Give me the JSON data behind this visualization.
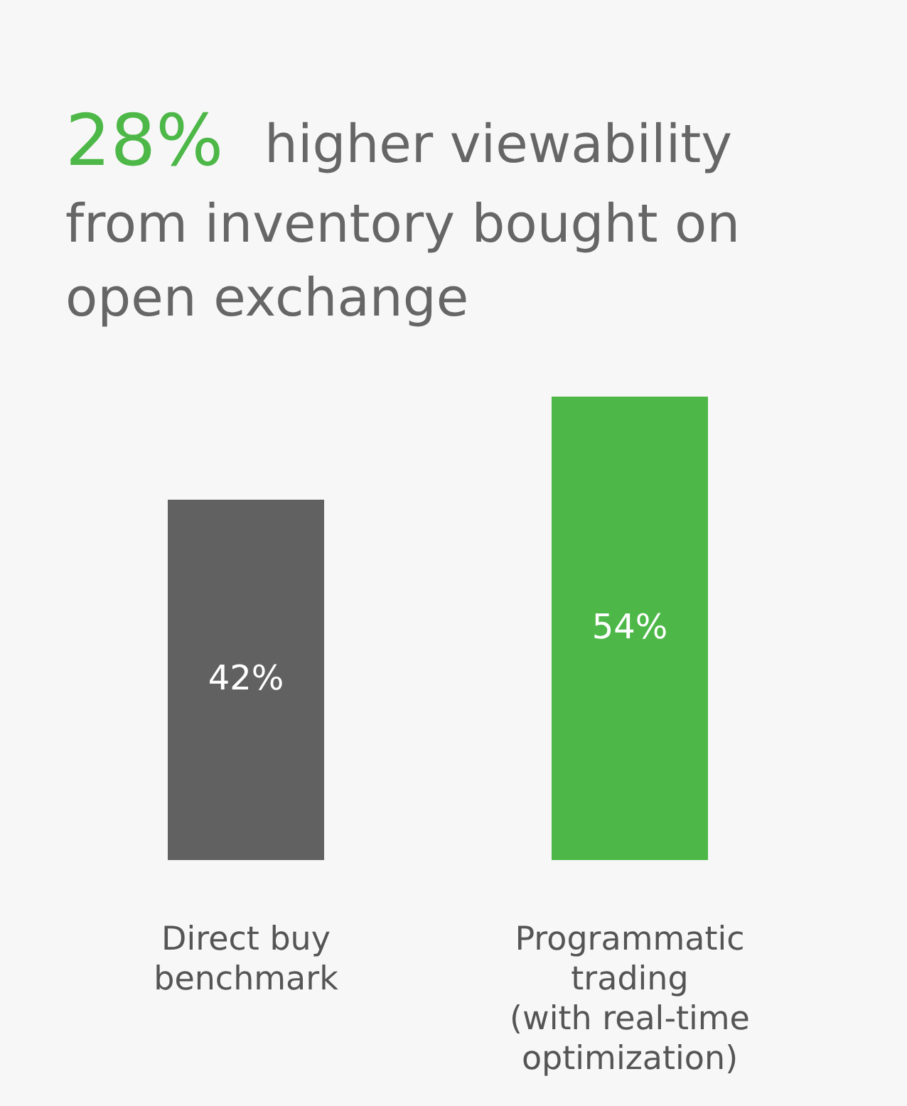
{
  "chart_data": {
    "type": "bar",
    "title": "28% higher viewability\nfrom inventory bought on\nopen exchange",
    "categories": [
      "Direct buy\nbenchmark",
      "Programmatic\ntrading\n(with real-time\noptimization)"
    ],
    "values": [
      42,
      54
    ],
    "colors": [
      "#616161",
      "#4db848"
    ],
    "value_labels": [
      "42%",
      "54%"
    ]
  }
}
